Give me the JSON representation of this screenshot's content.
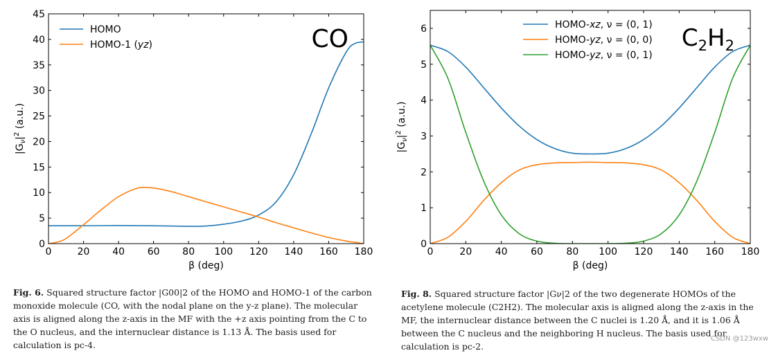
{
  "chart_data": [
    {
      "type": "line",
      "annotation": "CO",
      "xlabel": "β (deg)",
      "ylabel": "|G",
      "ylabel_sub": "ν",
      "ylabel_rest": "|",
      "ylabel_sup": "2",
      "ylabel_tail": " (a.u.)",
      "xlim": [
        0,
        180
      ],
      "ylim": [
        0,
        45
      ],
      "xticks": [
        0,
        20,
        40,
        60,
        80,
        100,
        120,
        140,
        160,
        180
      ],
      "yticks": [
        0,
        5,
        10,
        15,
        20,
        25,
        30,
        35,
        40,
        45
      ],
      "legend_position": "top-left",
      "series": [
        {
          "name": "HOMO",
          "name_italic": "",
          "color": "#1f77b4",
          "x": [
            0,
            20,
            40,
            60,
            80,
            90,
            100,
            110,
            120,
            130,
            140,
            150,
            160,
            170,
            175,
            180
          ],
          "y": [
            3.5,
            3.5,
            3.55,
            3.5,
            3.4,
            3.45,
            3.8,
            4.4,
            5.6,
            8.2,
            13.5,
            21.5,
            30.5,
            37.5,
            39.2,
            39.5
          ]
        },
        {
          "name": "HOMO-1 (",
          "name_italic": "yz",
          "name_tail": ")",
          "color": "#ff7f0e",
          "x": [
            0,
            5,
            10,
            20,
            30,
            40,
            50,
            55,
            60,
            70,
            80,
            90,
            100,
            110,
            120,
            130,
            140,
            150,
            160,
            170,
            180
          ],
          "y": [
            0,
            0.3,
            1.0,
            3.7,
            6.6,
            9.2,
            10.8,
            11.0,
            10.9,
            10.2,
            9.2,
            8.2,
            7.2,
            6.2,
            5.2,
            4.1,
            3.1,
            2.1,
            1.2,
            0.5,
            0
          ]
        }
      ]
    },
    {
      "type": "line",
      "annotation_main": "C",
      "annotation_sub1": "2",
      "annotation_mid": "H",
      "annotation_sub2": "2",
      "xlabel": "β (deg)",
      "ylabel": "|G",
      "ylabel_sub": "ν",
      "ylabel_rest": "|",
      "ylabel_sup": "2",
      "ylabel_tail": " (a.u.)",
      "xlim": [
        0,
        180
      ],
      "ylim": [
        0,
        6.5
      ],
      "xticks": [
        0,
        20,
        40,
        60,
        80,
        100,
        120,
        140,
        160,
        180
      ],
      "yticks": [
        0,
        1,
        2,
        3,
        4,
        5,
        6
      ],
      "legend_position": "top-center",
      "series": [
        {
          "name": "HOMO-",
          "name_italic": "xz",
          "name_tail": ", ν = (0, 1)",
          "color": "#1f77b4",
          "x": [
            0,
            10,
            20,
            30,
            40,
            50,
            60,
            70,
            80,
            90,
            100,
            110,
            120,
            130,
            140,
            150,
            160,
            170,
            180
          ],
          "y": [
            5.53,
            5.35,
            4.92,
            4.35,
            3.78,
            3.28,
            2.9,
            2.65,
            2.52,
            2.5,
            2.52,
            2.65,
            2.9,
            3.28,
            3.78,
            4.35,
            4.92,
            5.35,
            5.53
          ]
        },
        {
          "name": "HOMO-",
          "name_italic": "yz",
          "name_tail": ", ν = (0, 0)",
          "color": "#ff7f0e",
          "x": [
            0,
            10,
            20,
            30,
            40,
            50,
            60,
            70,
            80,
            90,
            100,
            110,
            120,
            130,
            140,
            150,
            160,
            170,
            180
          ],
          "y": [
            0,
            0.18,
            0.62,
            1.2,
            1.7,
            2.05,
            2.2,
            2.25,
            2.26,
            2.27,
            2.26,
            2.25,
            2.2,
            2.05,
            1.7,
            1.2,
            0.62,
            0.18,
            0
          ]
        },
        {
          "name": "HOMO-",
          "name_italic": "yz",
          "name_tail": ", ν = (0, 1)",
          "color": "#2ca02c",
          "x": [
            0,
            10,
            20,
            30,
            40,
            50,
            60,
            70,
            80,
            90,
            100,
            110,
            120,
            130,
            140,
            150,
            160,
            170,
            180
          ],
          "y": [
            5.53,
            4.6,
            3.1,
            1.75,
            0.8,
            0.28,
            0.07,
            0.01,
            0,
            0,
            0,
            0.01,
            0.07,
            0.28,
            0.8,
            1.75,
            3.1,
            4.6,
            5.53
          ]
        }
      ]
    }
  ],
  "captions": [
    {
      "fig": "Fig. 6.",
      "text": "Squared structure factor |G00|2 of the HOMO and HOMO-1 of the carbon monoxide molecule (CO, with the nodal plane on the y-z plane). The molecular axis is aligned along the z-axis in the MF with the +z axis pointing from the C to the O nucleus, and the internuclear distance is 1.13 Å. The basis used for calculation is pc-4."
    },
    {
      "fig": "Fig. 8.",
      "text": "Squared structure factor |Gν|2 of the two degenerate HOMOs of the acetylene molecule (C2H2). The molecular axis is aligned along the z-axis in the MF, the internuclear distance between the C nuclei is 1.20 Å, and it is 1.06 Å between the C nucleus and the neighboring H nucleus. The basis used for calculation is pc-2."
    }
  ],
  "watermark": "CSDN @123wxw"
}
